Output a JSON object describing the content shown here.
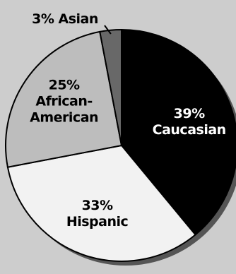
{
  "chart_data": {
    "type": "pie",
    "start_angle_deg": 0,
    "direction": "clockwise",
    "slices": [
      {
        "label": "Caucasian",
        "value": 39,
        "percent_text": "39%",
        "label_text_lines": [
          "39%",
          "Caucasian"
        ],
        "color": "#000000",
        "text_color": "#ffffff"
      },
      {
        "label": "Hispanic",
        "value": 33,
        "percent_text": "33%",
        "label_text_lines": [
          "33%",
          "Hispanic"
        ],
        "color": "#f2f2f2",
        "text_color": "#000000"
      },
      {
        "label": "African-American",
        "value": 25,
        "percent_text": "25%",
        "label_text_lines": [
          "25%",
          "African-",
          "American"
        ],
        "color": "#bdbdbd",
        "text_color": "#000000"
      },
      {
        "label": "Asian",
        "value": 3,
        "percent_text": "3%",
        "label_text_lines": [
          "3% Asian"
        ],
        "color": "#686868",
        "text_color": "#000000"
      }
    ]
  },
  "colors": {
    "background": "#cdcdcd",
    "shadow": "#555555",
    "outline": "#000000"
  }
}
